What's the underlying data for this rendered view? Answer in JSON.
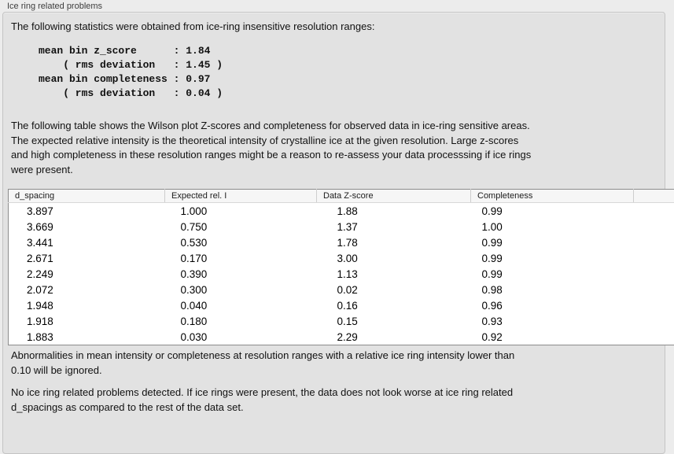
{
  "panel": {
    "title": "Ice ring related problems"
  },
  "intro": {
    "text": "The following statistics were obtained from ice-ring insensitive resolution ranges:"
  },
  "stats_block": {
    "text": "mean bin z_score      : 1.84\n    ( rms deviation   : 1.45 )\nmean bin completeness : 0.97\n    ( rms deviation   : 0.04 )",
    "mean_bin_z_score": "1.84",
    "z_score_rms_deviation": "1.45",
    "mean_bin_completeness": "0.97",
    "completeness_rms_deviation": "0.04"
  },
  "description": {
    "text": "The following table shows the Wilson plot Z-scores and completeness for observed data in ice-ring sensitive areas.\nThe expected relative intensity is the theoretical intensity of crystalline ice at the given resolution. Large z-scores\nand high completeness in these resolution ranges might be a reason to re-assess your data processsing if ice rings\nwere present."
  },
  "table": {
    "columns": [
      "d_spacing",
      "Expected rel. I",
      "Data Z-score",
      "Completeness",
      ""
    ],
    "column_keys": [
      "d_spacing",
      "expected_rel_i",
      "data_z_score",
      "completeness",
      "spacer"
    ],
    "rows": [
      [
        "3.897",
        "1.000",
        "1.88",
        "0.99"
      ],
      [
        "3.669",
        "0.750",
        "1.37",
        "1.00"
      ],
      [
        "3.441",
        "0.530",
        "1.78",
        "0.99"
      ],
      [
        "2.671",
        "0.170",
        "3.00",
        "0.99"
      ],
      [
        "2.249",
        "0.390",
        "1.13",
        "0.99"
      ],
      [
        "2.072",
        "0.300",
        "0.02",
        "0.98"
      ],
      [
        "1.948",
        "0.040",
        "0.16",
        "0.96"
      ],
      [
        "1.918",
        "0.180",
        "0.15",
        "0.93"
      ],
      [
        "1.883",
        "0.030",
        "2.29",
        "0.92"
      ]
    ]
  },
  "notes": {
    "ignore_note": "Abnormalities in mean intensity or completeness at resolution ranges with a relative ice ring intensity lower than\n0.10 will be ignored.",
    "conclusion": "No ice ring related problems detected. If ice rings were present, the data does not look worse at ice ring related\nd_spacings as compared to the rest of the data set."
  },
  "colors": {
    "outer_background": "#ececec",
    "groupbox_background": "#e2e2e2",
    "groupbox_border": "#c4c4c4",
    "table_background": "#ffffff",
    "table_border": "#8c8c8c",
    "header_background": "#f6f6f6",
    "text": "#111111"
  }
}
